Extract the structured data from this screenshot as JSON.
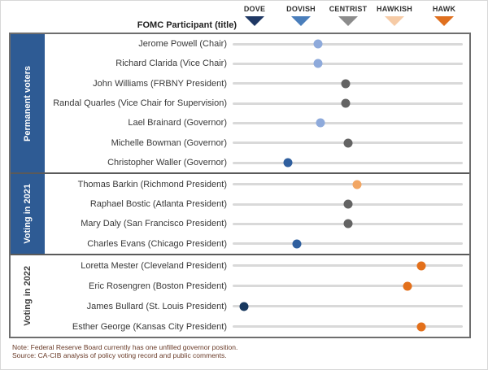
{
  "legend": {
    "items": [
      {
        "label": "DOVE",
        "color": "#1f3864"
      },
      {
        "label": "DOVISH",
        "color": "#4a7ebb"
      },
      {
        "label": "CENTRIST",
        "color": "#8c8c8c"
      },
      {
        "label": "HAWKISH",
        "color": "#f6cba6"
      },
      {
        "label": "HAWK",
        "color": "#e0701f"
      }
    ]
  },
  "palette": {
    "dove": "#17375e",
    "dovish": "#2f5f9e",
    "lean_dovish": "#8eaadb",
    "centrist": "#636363",
    "lean_hawkish": "#f2a663",
    "hawk": "#e3701b"
  },
  "colors": {
    "section_blue": "#2e5b94",
    "track_gray": "#d9d9d9",
    "frame_border": "#6e6e6e"
  },
  "chart_data": {
    "type": "scatter",
    "title": "FOMC Participant (title)",
    "xlabel": "",
    "ylabel": "",
    "x_axis": {
      "labels": [
        "DOVE",
        "DOVISH",
        "CENTRIST",
        "HAWKISH",
        "HAWK"
      ],
      "range": [
        0,
        100
      ],
      "grid": false
    },
    "legend_position": "top",
    "groups": [
      {
        "label": "Permanent voters",
        "highlight": true,
        "rows": [
          {
            "name": "Jerome Powell (Chair)",
            "position": 37,
            "stance": "lean_dovish"
          },
          {
            "name": "Richard Clarida (Vice Chair)",
            "position": 37,
            "stance": "lean_dovish"
          },
          {
            "name": "John Williams (FRBNY President)",
            "position": 49,
            "stance": "centrist"
          },
          {
            "name": "Randal Quarles (Vice Chair for Supervision)",
            "position": 49,
            "stance": "centrist"
          },
          {
            "name": "Lael Brainard (Governor)",
            "position": 38,
            "stance": "lean_dovish"
          },
          {
            "name": "Michelle Bowman (Governor)",
            "position": 50,
            "stance": "centrist"
          },
          {
            "name": "Christopher Waller (Governor)",
            "position": 24,
            "stance": "dovish"
          }
        ]
      },
      {
        "label": "Voting in 2021",
        "highlight": true,
        "rows": [
          {
            "name": "Thomas Barkin (Richmond President)",
            "position": 54,
            "stance": "lean_hawkish"
          },
          {
            "name": "Raphael Bostic (Atlanta President)",
            "position": 50,
            "stance": "centrist"
          },
          {
            "name": "Mary Daly (San Francisco President)",
            "position": 50,
            "stance": "centrist"
          },
          {
            "name": "Charles Evans (Chicago President)",
            "position": 28,
            "stance": "dovish"
          }
        ]
      },
      {
        "label": "Voting in 2022",
        "highlight": false,
        "rows": [
          {
            "name": "Loretta Mester (Cleveland President)",
            "position": 82,
            "stance": "hawk"
          },
          {
            "name": "Eric Rosengren (Boston President)",
            "position": 76,
            "stance": "hawk"
          },
          {
            "name": "James Bullard (St. Louis President)",
            "position": 5,
            "stance": "dove"
          },
          {
            "name": "Esther George (Kansas City President)",
            "position": 82,
            "stance": "hawk"
          }
        ]
      }
    ]
  },
  "notes": [
    "Note: Federal Reserve Board currently has one unfilled governor position.",
    "Source: CA-CIB analysis of policy voting record and public comments."
  ]
}
